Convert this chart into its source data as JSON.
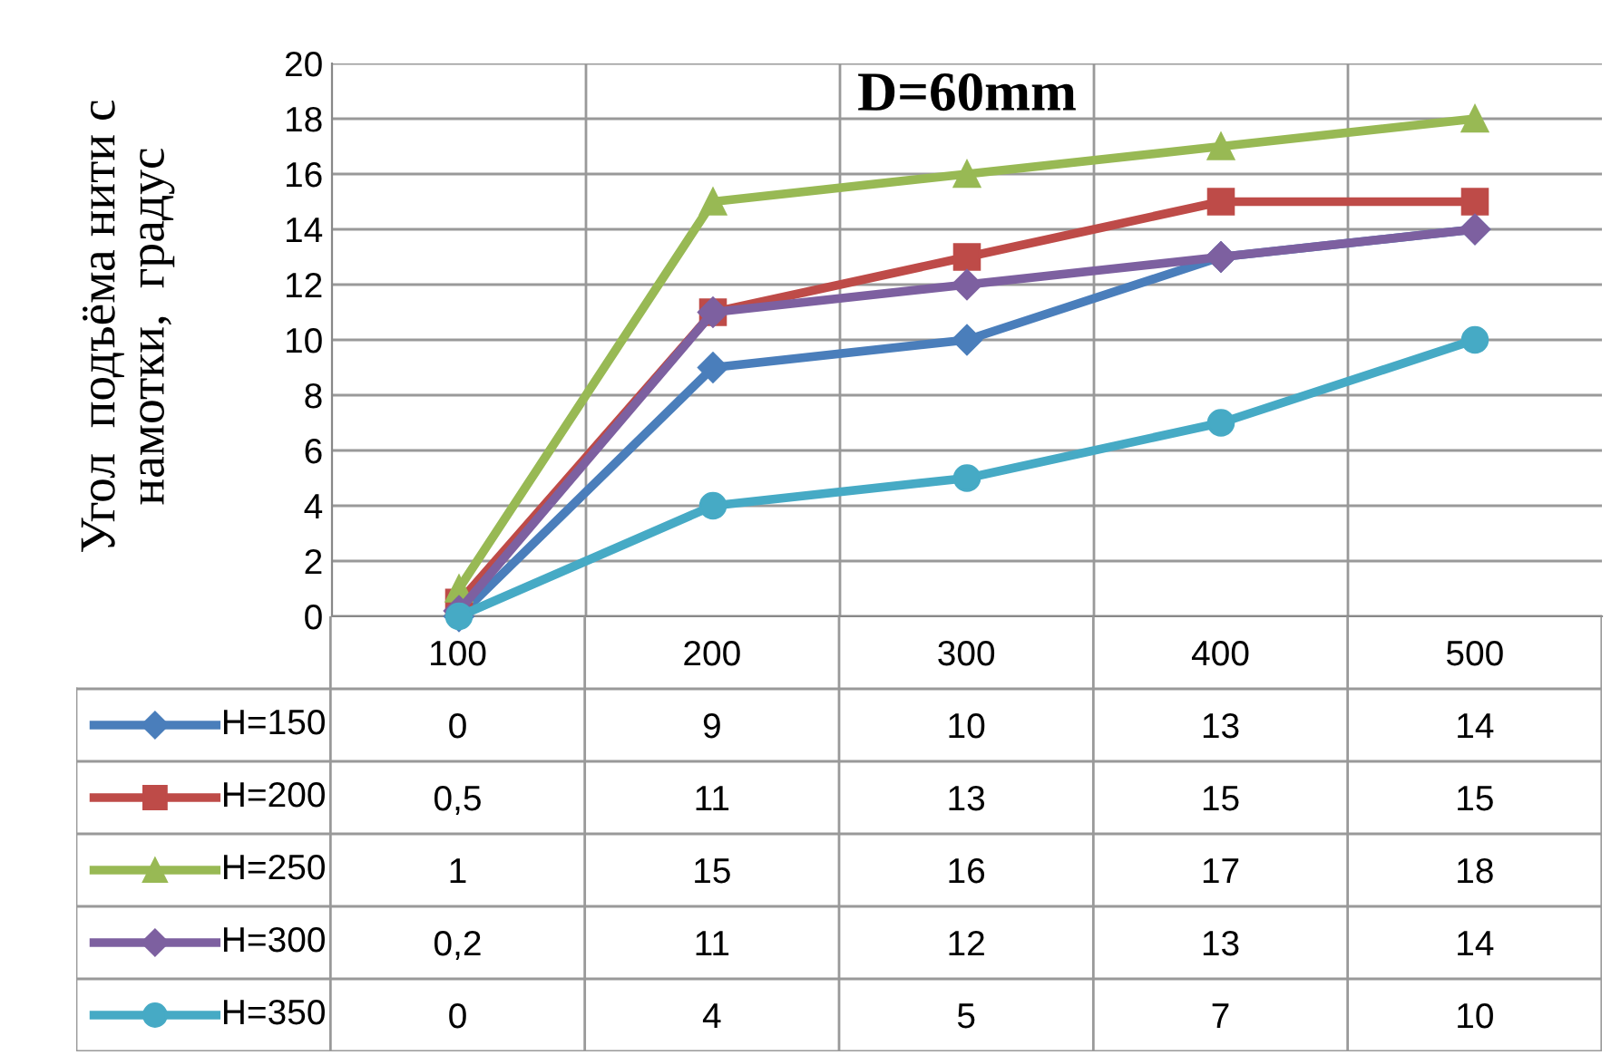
{
  "chart_data": {
    "type": "line",
    "title": "D=60mm",
    "ylabel": "Угол  подъёма нити с\nнамотки,  градус",
    "categories": [
      "100",
      "200",
      "300",
      "400",
      "500"
    ],
    "series": [
      {
        "name": "H=150",
        "color": "#4a7ebb",
        "marker": "diamond",
        "values": [
          0,
          9,
          10,
          13,
          14
        ],
        "value_labels": [
          "0",
          "9",
          "10",
          "13",
          "14"
        ]
      },
      {
        "name": "H=200",
        "color": "#be4b48",
        "marker": "square",
        "values": [
          0.5,
          11,
          13,
          15,
          15
        ],
        "value_labels": [
          "0,5",
          "11",
          "13",
          "15",
          "15"
        ]
      },
      {
        "name": "H=250",
        "color": "#98b954",
        "marker": "triangle",
        "values": [
          1,
          15,
          16,
          17,
          18
        ],
        "value_labels": [
          "1",
          "15",
          "16",
          "17",
          "18"
        ]
      },
      {
        "name": "H=300",
        "color": "#7d60a0",
        "marker": "diamond",
        "values": [
          0.2,
          11,
          12,
          13,
          14
        ],
        "value_labels": [
          "0,2",
          "11",
          "12",
          "13",
          "14"
        ]
      },
      {
        "name": "H=350",
        "color": "#46aac5",
        "marker": "circle",
        "values": [
          0,
          4,
          5,
          7,
          10
        ],
        "value_labels": [
          "0",
          "4",
          "5",
          "7",
          "10"
        ]
      }
    ],
    "ylim": [
      0,
      20
    ],
    "yticks": [
      0,
      2,
      4,
      6,
      8,
      10,
      12,
      14,
      16,
      18,
      20
    ],
    "grid": true,
    "legend": "bottom",
    "line_style": "solid"
  }
}
